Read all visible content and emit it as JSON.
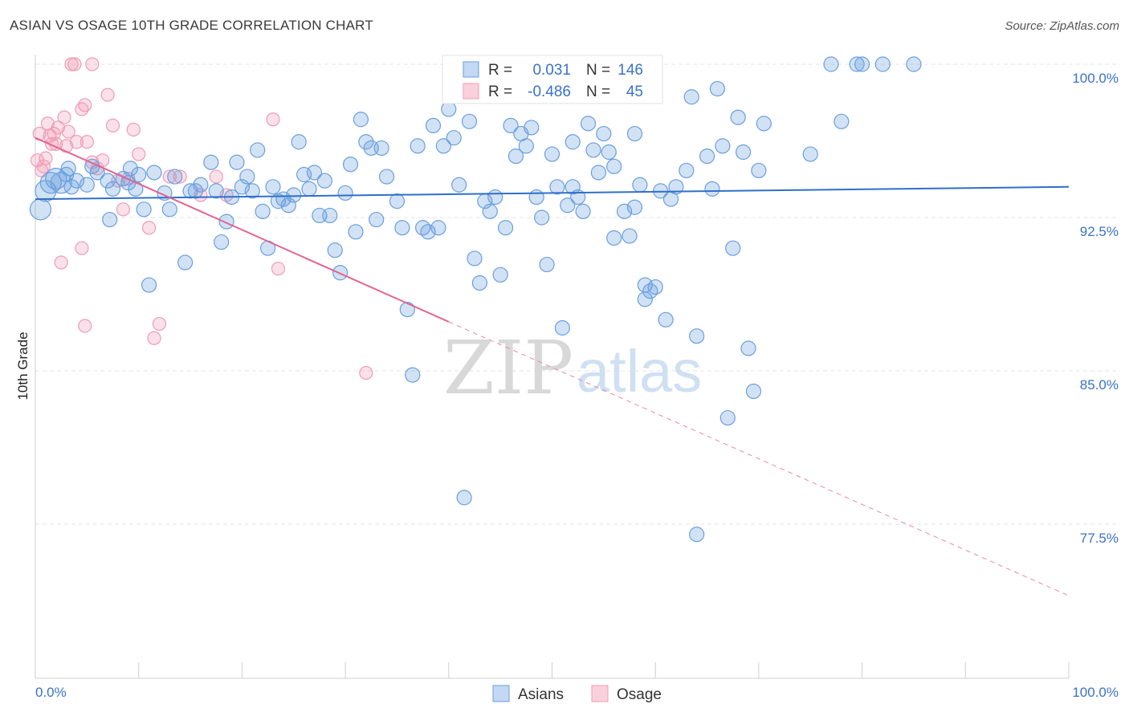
{
  "title": "ASIAN VS OSAGE 10TH GRADE CORRELATION CHART",
  "source": "Source: ZipAtlas.com",
  "watermark": {
    "zip": "ZIP",
    "atlas": "atlas"
  },
  "colors": {
    "asians": "#6a9fdf",
    "asians_line": "#2f6fc9",
    "osage": "#f09bb5",
    "osage_line": "#e36391",
    "tick": "#3a72c8"
  },
  "legend_stats": {
    "asians": {
      "r_label": "R =",
      "r": "0.031",
      "n_label": "N =",
      "n": "146"
    },
    "osage": {
      "r_label": "R =",
      "r": "-0.486",
      "n_label": "N =",
      "n": "45"
    }
  },
  "legend_bottom": [
    "Asians",
    "Osage"
  ],
  "chart_data": {
    "type": "scatter",
    "title": "ASIAN VS OSAGE 10TH GRADE CORRELATION CHART",
    "xlabel": "",
    "ylabel": "10th Grade",
    "xlim": [
      0,
      100
    ],
    "ylim": [
      70,
      100
    ],
    "x_tick_labels": [
      "0.0%",
      "100.0%"
    ],
    "y_ticks": [
      77.5,
      85.0,
      92.5,
      100.0
    ],
    "y_tick_labels": [
      "77.5%",
      "85.0%",
      "92.5%",
      "100.0%"
    ],
    "grid": true,
    "series": [
      {
        "name": "Asians",
        "trend": {
          "x": [
            0,
            100
          ],
          "y": [
            93.4,
            94.0
          ]
        },
        "points": [
          [
            0.5,
            92.9
          ],
          [
            1,
            93.8
          ],
          [
            1.5,
            94.2
          ],
          [
            2,
            94.4
          ],
          [
            2.5,
            94.2
          ],
          [
            3,
            94.6
          ],
          [
            3.5,
            94.0
          ],
          [
            4,
            94.3
          ],
          [
            5,
            94.1
          ],
          [
            5.5,
            95.0
          ],
          [
            6,
            94.7
          ],
          [
            7,
            94.3
          ],
          [
            7.2,
            92.4
          ],
          [
            7.5,
            93.9
          ],
          [
            8.5,
            94.4
          ],
          [
            9,
            94.2
          ],
          [
            9.2,
            94.9
          ],
          [
            10,
            94.6
          ],
          [
            10.5,
            92.9
          ],
          [
            11,
            89.2
          ],
          [
            11.5,
            94.7
          ],
          [
            12.5,
            93.7
          ],
          [
            13,
            92.9
          ],
          [
            13.5,
            94.5
          ],
          [
            14.5,
            90.3
          ],
          [
            15,
            93.8
          ],
          [
            15.5,
            93.8
          ],
          [
            16,
            94.1
          ],
          [
            17,
            95.2
          ],
          [
            17.5,
            93.8
          ],
          [
            18,
            91.3
          ],
          [
            18.5,
            92.3
          ],
          [
            19,
            93.5
          ],
          [
            19.5,
            95.2
          ],
          [
            20,
            94.0
          ],
          [
            20.5,
            94.5
          ],
          [
            21,
            93.8
          ],
          [
            21.5,
            95.8
          ],
          [
            22,
            92.8
          ],
          [
            22.5,
            91.0
          ],
          [
            23,
            94.0
          ],
          [
            23.5,
            93.3
          ],
          [
            24,
            93.4
          ],
          [
            24.5,
            93.1
          ],
          [
            25,
            93.6
          ],
          [
            25.5,
            96.2
          ],
          [
            26,
            94.6
          ],
          [
            26.5,
            93.9
          ],
          [
            27,
            94.7
          ],
          [
            27.5,
            92.6
          ],
          [
            28,
            94.3
          ],
          [
            28.5,
            92.6
          ],
          [
            29,
            90.9
          ],
          [
            29.5,
            89.8
          ],
          [
            30,
            93.7
          ],
          [
            30.5,
            95.1
          ],
          [
            31,
            91.8
          ],
          [
            31.5,
            97.3
          ],
          [
            32,
            96.2
          ],
          [
            32.5,
            95.9
          ],
          [
            33,
            92.4
          ],
          [
            33.5,
            95.9
          ],
          [
            34,
            94.5
          ],
          [
            35,
            93.3
          ],
          [
            35.5,
            92.0
          ],
          [
            36,
            88.0
          ],
          [
            36.5,
            84.8
          ],
          [
            37,
            96.0
          ],
          [
            37.5,
            92.0
          ],
          [
            38,
            91.8
          ],
          [
            38.5,
            97.0
          ],
          [
            39,
            92.0
          ],
          [
            39.5,
            96.0
          ],
          [
            40,
            97.8
          ],
          [
            40.5,
            96.4
          ],
          [
            41,
            94.1
          ],
          [
            41.5,
            78.8
          ],
          [
            42,
            97.2
          ],
          [
            42.5,
            90.5
          ],
          [
            43,
            89.3
          ],
          [
            43.5,
            93.3
          ],
          [
            44,
            92.8
          ],
          [
            44.5,
            93.5
          ],
          [
            45,
            89.7
          ],
          [
            45.5,
            92.0
          ],
          [
            46,
            97.0
          ],
          [
            46.5,
            95.5
          ],
          [
            47,
            96.6
          ],
          [
            47.5,
            96.0
          ],
          [
            48,
            96.9
          ],
          [
            48.5,
            93.5
          ],
          [
            49,
            92.5
          ],
          [
            49.5,
            90.2
          ],
          [
            50,
            95.6
          ],
          [
            50.5,
            94.0
          ],
          [
            51,
            87.1
          ],
          [
            51.5,
            93.1
          ],
          [
            52,
            96.2
          ],
          [
            52.5,
            93.5
          ],
          [
            53,
            92.8
          ],
          [
            53.5,
            97.1
          ],
          [
            54,
            95.8
          ],
          [
            54.5,
            94.7
          ],
          [
            55,
            96.6
          ],
          [
            55.5,
            95.7
          ],
          [
            56,
            91.5
          ],
          [
            57,
            92.8
          ],
          [
            57.5,
            91.6
          ],
          [
            58,
            96.6
          ],
          [
            58.5,
            94.1
          ],
          [
            59,
            89.2
          ],
          [
            59.5,
            88.9
          ],
          [
            60,
            89.1
          ],
          [
            61,
            87.5
          ],
          [
            61.5,
            93.4
          ],
          [
            62,
            94.0
          ],
          [
            63,
            94.8
          ],
          [
            63.5,
            98.4
          ],
          [
            64,
            86.7
          ],
          [
            65,
            95.5
          ],
          [
            65.5,
            93.9
          ],
          [
            66,
            98.8
          ],
          [
            67,
            82.7
          ],
          [
            67.5,
            91.0
          ],
          [
            68,
            97.4
          ],
          [
            68.5,
            95.7
          ],
          [
            69,
            86.1
          ],
          [
            69.5,
            84.0
          ],
          [
            70,
            94.8
          ],
          [
            70.5,
            97.1
          ],
          [
            64,
            77.0
          ],
          [
            75,
            95.6
          ],
          [
            77,
            100.0
          ],
          [
            78,
            97.2
          ],
          [
            79.5,
            100.0
          ],
          [
            80,
            100.0
          ],
          [
            82,
            100.0
          ],
          [
            85,
            100.0
          ],
          [
            52,
            94.0
          ],
          [
            56,
            95.0
          ],
          [
            58,
            93.0
          ],
          [
            59,
            88.5
          ],
          [
            60.5,
            93.8
          ],
          [
            66.5,
            96.0
          ],
          [
            9.7,
            93.9
          ],
          [
            3.2,
            94.9
          ]
        ]
      },
      {
        "name": "Osage",
        "trend": {
          "x": [
            0,
            40
          ],
          "y": [
            96.4,
            87.4
          ]
        },
        "trend_dashed": {
          "x": [
            40,
            100
          ],
          "y": [
            87.4,
            74.0
          ]
        },
        "points": [
          [
            0.2,
            95.3
          ],
          [
            0.4,
            96.6
          ],
          [
            0.6,
            94.8
          ],
          [
            0.8,
            95.0
          ],
          [
            1.0,
            95.4
          ],
          [
            1.2,
            97.1
          ],
          [
            1.4,
            96.5
          ],
          [
            1.6,
            96.1
          ],
          [
            1.8,
            96.6
          ],
          [
            2.0,
            96.1
          ],
          [
            2.2,
            96.9
          ],
          [
            2.5,
            90.3
          ],
          [
            2.8,
            97.4
          ],
          [
            3.0,
            96.0
          ],
          [
            3.2,
            96.7
          ],
          [
            3.5,
            100.0
          ],
          [
            3.8,
            100.0
          ],
          [
            4,
            96.2
          ],
          [
            4.5,
            97.8
          ],
          [
            4.8,
            98.0
          ],
          [
            4.5,
            91.0
          ],
          [
            5.0,
            96.2
          ],
          [
            5.5,
            100.0
          ],
          [
            4.8,
            87.2
          ],
          [
            5.5,
            95.2
          ],
          [
            6,
            94.9
          ],
          [
            6.5,
            95.3
          ],
          [
            7,
            98.5
          ],
          [
            7.5,
            97.0
          ],
          [
            8,
            94.3
          ],
          [
            8.5,
            92.9
          ],
          [
            9,
            94.4
          ],
          [
            9.5,
            96.8
          ],
          [
            10,
            95.6
          ],
          [
            11,
            92.0
          ],
          [
            11.5,
            86.6
          ],
          [
            12,
            87.3
          ],
          [
            13,
            94.5
          ],
          [
            14,
            94.5
          ],
          [
            16,
            93.6
          ],
          [
            17.5,
            94.5
          ],
          [
            18.5,
            93.6
          ],
          [
            23,
            97.3
          ],
          [
            23.5,
            90.0
          ],
          [
            32,
            84.9
          ]
        ]
      }
    ]
  }
}
